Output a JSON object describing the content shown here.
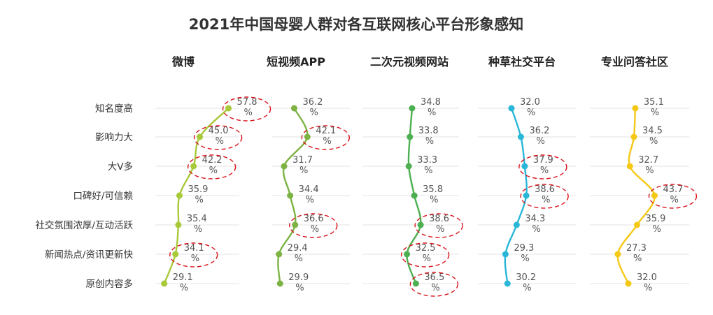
{
  "title": "2021年中国母婴人群对各互联网核心平台形象感知",
  "chart_data": {
    "type": "line",
    "categories": [
      "知名度高",
      "影响力大",
      "大V多",
      "口碑好/可信赖",
      "社交氛围浓厚/互动活跃",
      "新闻热点/资讯更新快",
      "原创内容多"
    ],
    "unit": "%",
    "series": [
      {
        "name": "微博",
        "color": "#a8c93a",
        "values": [
          57.8,
          45.0,
          42.2,
          35.9,
          35.4,
          34.1,
          29.1
        ],
        "highlighted": [
          0,
          1,
          2,
          5
        ]
      },
      {
        "name": "短视频APP",
        "color": "#7cb342",
        "values": [
          36.2,
          42.1,
          31.7,
          34.4,
          36.6,
          29.4,
          29.9
        ],
        "highlighted": [
          1,
          4
        ]
      },
      {
        "name": "二次元视频网站",
        "color": "#4caf50",
        "values": [
          34.8,
          33.8,
          33.3,
          35.8,
          38.6,
          32.5,
          36.5
        ],
        "highlighted": [
          4,
          5,
          6
        ]
      },
      {
        "name": "种草社交平台",
        "color": "#29b6d8",
        "values": [
          32.0,
          36.2,
          37.9,
          38.6,
          34.3,
          29.3,
          30.2
        ],
        "highlighted": [
          2,
          3
        ]
      },
      {
        "name": "专业问答社区",
        "color": "#f5c816",
        "values": [
          35.1,
          34.5,
          32.7,
          43.7,
          35.9,
          27.3,
          32.0
        ],
        "highlighted": [
          3
        ]
      }
    ]
  }
}
